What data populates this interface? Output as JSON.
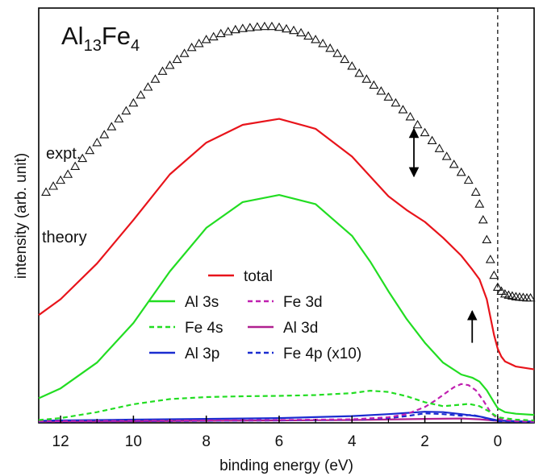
{
  "chart_data": {
    "type": "line",
    "title": "Al13Fe4",
    "title_parts": {
      "base1": "Al",
      "sub1": "13",
      "base2": "Fe",
      "sub2": "4"
    },
    "xlabel": "binding energy (eV)",
    "ylabel": "intensity (arb. unit)",
    "x_reversed": true,
    "xlim": [
      12.6,
      -1.0
    ],
    "ylim": [
      0,
      100
    ],
    "x_ticks": [
      12,
      10,
      8,
      6,
      4,
      2,
      0
    ],
    "x_tick_labels": [
      "12",
      "10",
      "8",
      "6",
      "4",
      "2",
      "0"
    ],
    "fermi_level_line": 0,
    "annotations": {
      "expt": "expt.",
      "theory": "theory"
    },
    "legend": {
      "placement": "bottom-center",
      "entries": [
        {
          "label": "total",
          "color": "#e8141b",
          "dash": "solid"
        },
        {
          "label": "Al 3s",
          "color": "#22dd22",
          "dash": "solid"
        },
        {
          "label": "Fe 3d",
          "color": "#c020b0",
          "dash": "dashed"
        },
        {
          "label": "Fe 4s",
          "color": "#22dd22",
          "dash": "dashed"
        },
        {
          "label": "Al 3d",
          "color": "#b02090",
          "dash": "solid"
        },
        {
          "label": "Al 3p",
          "color": "#1a2cd0",
          "dash": "solid"
        },
        {
          "label": "Fe 4p (x10)",
          "color": "#1a2cd0",
          "dash": "dashed"
        }
      ]
    },
    "arrows": [
      {
        "x": 2.3,
        "y_from": 62,
        "y_to": 74,
        "direction": "both"
      },
      {
        "x": 0.7,
        "y_from": 20,
        "y_to": 28,
        "direction": "up"
      }
    ],
    "series": [
      {
        "name": "expt.",
        "kind": "scatter",
        "marker": "triangle-open",
        "color": "#000000",
        "x": [
          12.4,
          12.2,
          12.0,
          11.8,
          11.6,
          11.4,
          11.2,
          11.0,
          10.8,
          10.6,
          10.4,
          10.2,
          10.0,
          9.8,
          9.6,
          9.4,
          9.2,
          9.0,
          8.8,
          8.6,
          8.4,
          8.2,
          8.0,
          7.8,
          7.6,
          7.4,
          7.2,
          7.0,
          6.8,
          6.6,
          6.4,
          6.2,
          6.0,
          5.8,
          5.6,
          5.4,
          5.2,
          5.0,
          4.8,
          4.6,
          4.4,
          4.2,
          4.0,
          3.8,
          3.6,
          3.4,
          3.2,
          3.0,
          2.8,
          2.6,
          2.4,
          2.2,
          2.0,
          1.8,
          1.6,
          1.4,
          1.2,
          1.0,
          0.8,
          0.6,
          0.5,
          0.4,
          0.3,
          0.2,
          0.1,
          0.0,
          -0.1,
          -0.2,
          -0.3,
          -0.4,
          -0.5,
          -0.6,
          -0.7,
          -0.8,
          -0.9
        ],
        "y": [
          58.0,
          59.5,
          61.0,
          62.5,
          64.5,
          66.5,
          68.5,
          70.5,
          72.5,
          74.5,
          76.5,
          78.5,
          80.5,
          82.5,
          84.5,
          86.5,
          88.5,
          90.0,
          91.5,
          93.0,
          94.5,
          95.5,
          96.5,
          97.2,
          98.0,
          98.5,
          99.0,
          99.3,
          99.5,
          99.7,
          99.8,
          99.8,
          99.6,
          99.2,
          98.8,
          98.2,
          97.4,
          96.5,
          95.5,
          94.3,
          93.0,
          91.5,
          89.8,
          88.0,
          86.5,
          85.0,
          83.5,
          82.0,
          80.5,
          78.8,
          77.0,
          75.0,
          73.0,
          71.0,
          69.0,
          67.0,
          65.0,
          63.0,
          61.0,
          58.0,
          55.0,
          51.0,
          46.0,
          41.0,
          37.0,
          34.0,
          33.0,
          32.3,
          32.0,
          31.8,
          31.6,
          31.5,
          31.4,
          31.3,
          31.3
        ]
      },
      {
        "name": "total",
        "kind": "line",
        "color": "#e8141b",
        "dash": "solid",
        "x": [
          12.6,
          12.0,
          11.0,
          10.0,
          9.0,
          8.0,
          7.0,
          6.0,
          5.0,
          4.5,
          4.0,
          3.5,
          3.0,
          2.5,
          2.0,
          1.5,
          1.0,
          0.7,
          0.5,
          0.3,
          0.2,
          0.1,
          0.0,
          -0.1,
          -0.2,
          -0.5,
          -1.0
        ],
        "y": [
          27.0,
          31.0,
          40.0,
          51.0,
          62.5,
          70.5,
          75.0,
          76.5,
          74.0,
          70.5,
          67.0,
          62.0,
          57.0,
          53.5,
          50.5,
          46.5,
          42.0,
          38.5,
          36.0,
          31.0,
          26.5,
          22.0,
          18.5,
          16.5,
          15.3,
          14.0,
          13.3
        ]
      },
      {
        "name": "Al 3s",
        "kind": "line",
        "color": "#22dd22",
        "dash": "solid",
        "x": [
          12.6,
          12.0,
          11.0,
          10.0,
          9.0,
          8.0,
          7.0,
          6.0,
          5.0,
          4.0,
          3.5,
          3.0,
          2.5,
          2.0,
          1.5,
          1.0,
          0.7,
          0.5,
          0.3,
          0.1,
          0.0,
          -0.2,
          -0.5,
          -1.0
        ],
        "y": [
          6.0,
          8.5,
          15.0,
          25.0,
          38.0,
          49.0,
          55.5,
          57.3,
          55.0,
          47.0,
          40.5,
          33.0,
          26.0,
          20.0,
          15.0,
          12.0,
          11.2,
          10.2,
          8.0,
          5.0,
          3.5,
          2.5,
          2.1,
          1.8
        ]
      },
      {
        "name": "Fe 4s",
        "kind": "line",
        "color": "#22dd22",
        "dash": "dashed",
        "x": [
          12.6,
          12.0,
          11.0,
          10.0,
          9.0,
          8.0,
          7.0,
          6.0,
          5.0,
          4.0,
          3.5,
          3.0,
          2.5,
          2.0,
          1.5,
          1.0,
          0.8,
          0.5,
          0.2,
          0.0,
          -0.5,
          -1.0
        ],
        "y": [
          0.5,
          1.0,
          2.5,
          4.5,
          5.8,
          6.3,
          6.5,
          6.6,
          6.8,
          7.3,
          7.9,
          7.6,
          6.5,
          5.0,
          4.0,
          4.4,
          4.6,
          4.0,
          2.5,
          1.2,
          0.6,
          0.4
        ]
      },
      {
        "name": "Fe 3d",
        "kind": "line",
        "color": "#c020b0",
        "dash": "dashed",
        "x": [
          12.6,
          10.0,
          8.0,
          6.0,
          4.0,
          3.0,
          2.5,
          2.0,
          1.7,
          1.4,
          1.2,
          1.0,
          0.8,
          0.6,
          0.4,
          0.2,
          0.0,
          -0.5,
          -1.0
        ],
        "y": [
          0.2,
          0.3,
          0.4,
          0.5,
          0.7,
          1.2,
          2.0,
          3.8,
          5.5,
          7.5,
          8.8,
          9.6,
          9.3,
          8.0,
          5.5,
          2.5,
          0.8,
          0.2,
          0.1
        ]
      },
      {
        "name": "Al 3d",
        "kind": "line",
        "color": "#b02090",
        "dash": "solid",
        "x": [
          12.6,
          10.0,
          8.0,
          6.0,
          4.0,
          2.0,
          1.0,
          0.5,
          0.0,
          -1.0
        ],
        "y": [
          0.1,
          0.2,
          0.3,
          0.4,
          0.5,
          0.8,
          0.9,
          0.7,
          0.3,
          0.1
        ]
      },
      {
        "name": "Al 3p",
        "kind": "line",
        "color": "#1a2cd0",
        "dash": "solid",
        "x": [
          12.6,
          12.0,
          10.0,
          8.0,
          6.0,
          4.0,
          3.0,
          2.0,
          1.5,
          1.0,
          0.5,
          0.2,
          0.0,
          -0.5,
          -1.0
        ],
        "y": [
          0.3,
          0.4,
          0.6,
          0.8,
          1.0,
          1.5,
          2.0,
          2.6,
          2.5,
          2.0,
          1.4,
          0.8,
          0.4,
          0.2,
          0.1
        ]
      },
      {
        "name": "Fe 4p (x10)",
        "kind": "line",
        "color": "#1a2cd0",
        "dash": "dashed",
        "x": [
          12.6,
          10.0,
          8.0,
          6.0,
          4.0,
          3.0,
          2.5,
          2.0,
          1.5,
          1.0,
          0.7,
          0.4,
          0.2,
          0.0,
          -0.5,
          -1.0
        ],
        "y": [
          0.1,
          0.2,
          0.3,
          0.4,
          0.6,
          1.0,
          1.5,
          2.2,
          2.0,
          1.6,
          1.8,
          1.2,
          0.6,
          0.2,
          0.1,
          0.0
        ]
      }
    ]
  }
}
